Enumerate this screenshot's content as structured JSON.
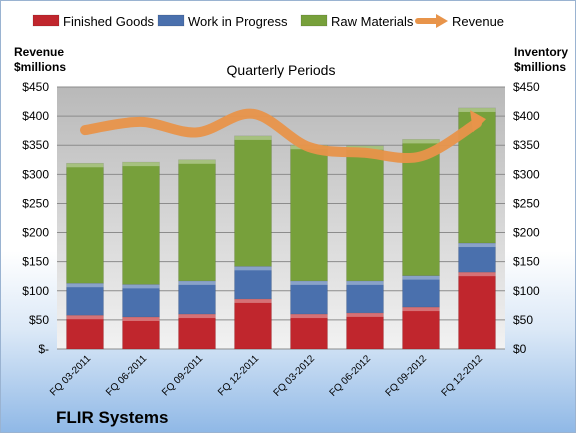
{
  "chart_data": {
    "type": "bar",
    "stacked": true,
    "title": "Quarterly Periods",
    "company": "FLIR Systems",
    "y_left_label": [
      "Revenue",
      "$millions"
    ],
    "y_right_label": [
      "Inventory",
      "$millions"
    ],
    "ylim": [
      0,
      450
    ],
    "y_ticks_left": [
      "$-",
      "$50",
      "$100",
      "$150",
      "$200",
      "$250",
      "$300",
      "$350",
      "$400",
      "$450"
    ],
    "y_ticks_right": [
      "$0",
      "$50",
      "$100",
      "$150",
      "$200",
      "$250",
      "$300",
      "$350",
      "$400",
      "$450"
    ],
    "categories": [
      "FQ 03-2011",
      "FQ 06-2011",
      "FQ 09-2011",
      "FQ 12-2011",
      "FQ 03-2012",
      "FQ 06-2012",
      "FQ 09-2012",
      "FQ 12-2012"
    ],
    "series": [
      {
        "name": "Finished Goods",
        "color": "#c0262d",
        "values": [
          58,
          55,
          60,
          86,
          60,
          62,
          72,
          132
        ]
      },
      {
        "name": "Work in Progress",
        "color": "#4a70ad",
        "values": [
          55,
          56,
          57,
          56,
          57,
          55,
          54,
          50
        ]
      },
      {
        "name": "Raw Materials",
        "color": "#77a03b",
        "values": [
          206,
          210,
          208,
          224,
          233,
          232,
          234,
          232
        ]
      }
    ],
    "line_series": {
      "name": "Revenue",
      "color": "#e8944a",
      "values": [
        376,
        390,
        372,
        404,
        347,
        337,
        331,
        388
      ]
    },
    "legend_position": "top",
    "grid": true
  }
}
